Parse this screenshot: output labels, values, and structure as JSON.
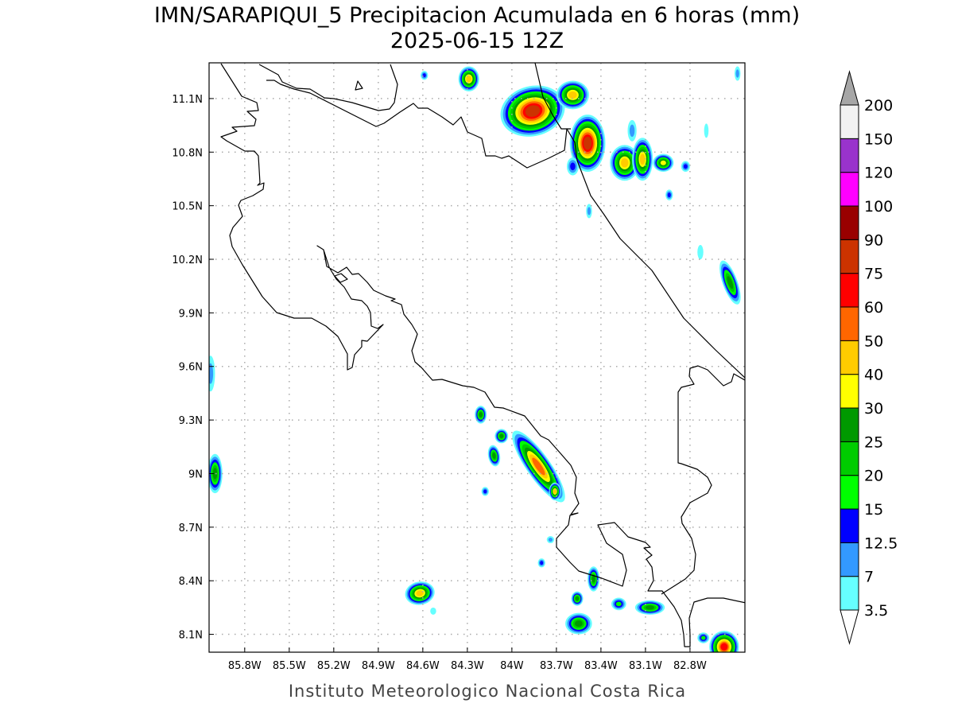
{
  "chart_data": {
    "type": "heatmap",
    "title": "IMN/SARAPIQUI_5 Precipitacion Acumulada en 6 horas (mm)",
    "subtitle": "2025-06-15 12Z",
    "footer": "Instituto Meteorologico Nacional Costa Rica",
    "xlim_lon_west": [
      86.04,
      82.43
    ],
    "ylim_lat_north": [
      8.0,
      11.3
    ],
    "grid": true,
    "x_ticks": [
      {
        "v": 85.8,
        "label": "85.8W"
      },
      {
        "v": 85.5,
        "label": "85.5W"
      },
      {
        "v": 85.2,
        "label": "85.2W"
      },
      {
        "v": 84.9,
        "label": "84.9W"
      },
      {
        "v": 84.6,
        "label": "84.6W"
      },
      {
        "v": 84.3,
        "label": "84.3W"
      },
      {
        "v": 84.0,
        "label": "84W"
      },
      {
        "v": 83.7,
        "label": "83.7W"
      },
      {
        "v": 83.4,
        "label": "83.4W"
      },
      {
        "v": 83.1,
        "label": "83.1W"
      },
      {
        "v": 82.8,
        "label": "82.8W"
      }
    ],
    "y_ticks": [
      {
        "v": 11.1,
        "label": "11.1N"
      },
      {
        "v": 10.8,
        "label": "10.8N"
      },
      {
        "v": 10.5,
        "label": "10.5N"
      },
      {
        "v": 10.2,
        "label": "10.2N"
      },
      {
        "v": 9.9,
        "label": "9.9N"
      },
      {
        "v": 9.6,
        "label": "9.6N"
      },
      {
        "v": 9.3,
        "label": "9.3N"
      },
      {
        "v": 9.0,
        "label": "9N"
      },
      {
        "v": 8.7,
        "label": "8.7N"
      },
      {
        "v": 8.4,
        "label": "8.4N"
      },
      {
        "v": 8.1,
        "label": "8.1N"
      }
    ],
    "colorbar": {
      "levels": [
        "3.5",
        "7",
        "12.5",
        "15",
        "20",
        "25",
        "30",
        "40",
        "50",
        "60",
        "75",
        "90",
        "100",
        "120",
        "150",
        "200"
      ],
      "level_values": [
        3.5,
        7,
        12.5,
        15,
        20,
        25,
        30,
        40,
        50,
        60,
        75,
        90,
        100,
        120,
        150,
        200
      ],
      "colors": [
        "#66ffff",
        "#3399ff",
        "#0000ff",
        "#00ff00",
        "#00cc00",
        "#009900",
        "#ffff00",
        "#ffcc00",
        "#ff6600",
        "#ff0000",
        "#cc3300",
        "#990000",
        "#ff00ff",
        "#9933cc",
        "#f2f2f2"
      ],
      "over_color": "#a6a6a6",
      "under_color": "#ffffff"
    },
    "cells": [
      {
        "lon": 83.86,
        "lat": 11.03,
        "rx": 0.22,
        "ry": 0.14,
        "angle": -15,
        "peak": 75
      },
      {
        "lon": 83.59,
        "lat": 11.12,
        "rx": 0.11,
        "ry": 0.08,
        "angle": 0,
        "peak": 40
      },
      {
        "lon": 83.49,
        "lat": 10.85,
        "rx": 0.12,
        "ry": 0.16,
        "angle": 0,
        "peak": 75
      },
      {
        "lon": 83.59,
        "lat": 10.72,
        "rx": 0.04,
        "ry": 0.05,
        "angle": 0,
        "peak": 12.5
      },
      {
        "lon": 84.29,
        "lat": 11.21,
        "rx": 0.07,
        "ry": 0.07,
        "angle": 0,
        "peak": 40
      },
      {
        "lon": 84.59,
        "lat": 11.23,
        "rx": 0.025,
        "ry": 0.025,
        "angle": 0,
        "peak": 12.5
      },
      {
        "lon": 83.24,
        "lat": 10.74,
        "rx": 0.1,
        "ry": 0.1,
        "angle": 0,
        "peak": 40
      },
      {
        "lon": 83.12,
        "lat": 10.76,
        "rx": 0.07,
        "ry": 0.12,
        "angle": 0,
        "peak": 40
      },
      {
        "lon": 82.98,
        "lat": 10.74,
        "rx": 0.07,
        "ry": 0.05,
        "angle": 0,
        "peak": 30
      },
      {
        "lon": 83.19,
        "lat": 10.92,
        "rx": 0.03,
        "ry": 0.06,
        "angle": 0,
        "peak": 7
      },
      {
        "lon": 82.83,
        "lat": 10.72,
        "rx": 0.03,
        "ry": 0.03,
        "angle": 0,
        "peak": 12.5
      },
      {
        "lon": 82.94,
        "lat": 10.56,
        "rx": 0.025,
        "ry": 0.03,
        "angle": 0,
        "peak": 12.5
      },
      {
        "lon": 83.48,
        "lat": 10.47,
        "rx": 0.02,
        "ry": 0.04,
        "angle": 0,
        "peak": 7
      },
      {
        "lon": 82.53,
        "lat": 10.07,
        "rx": 0.05,
        "ry": 0.13,
        "angle": -20,
        "peak": 25
      },
      {
        "lon": 82.48,
        "lat": 11.24,
        "rx": 0.02,
        "ry": 0.04,
        "angle": 0,
        "peak": 7
      },
      {
        "lon": 82.69,
        "lat": 10.92,
        "rx": 0.015,
        "ry": 0.04,
        "angle": 0,
        "peak": 3.5
      },
      {
        "lon": 82.73,
        "lat": 10.24,
        "rx": 0.02,
        "ry": 0.04,
        "angle": 0,
        "peak": 3.5
      },
      {
        "lon": 84.21,
        "lat": 9.33,
        "rx": 0.04,
        "ry": 0.05,
        "angle": 0,
        "peak": 25
      },
      {
        "lon": 84.07,
        "lat": 9.21,
        "rx": 0.045,
        "ry": 0.04,
        "angle": 0,
        "peak": 25
      },
      {
        "lon": 84.12,
        "lat": 9.1,
        "rx": 0.04,
        "ry": 0.06,
        "angle": -10,
        "peak": 25
      },
      {
        "lon": 83.82,
        "lat": 9.04,
        "rx": 0.08,
        "ry": 0.24,
        "angle": -35,
        "peak": 50
      },
      {
        "lon": 83.71,
        "lat": 8.9,
        "rx": 0.04,
        "ry": 0.05,
        "angle": 0,
        "peak": 40
      },
      {
        "lon": 84.18,
        "lat": 8.9,
        "rx": 0.025,
        "ry": 0.025,
        "angle": 0,
        "peak": 12.5
      },
      {
        "lon": 83.74,
        "lat": 8.63,
        "rx": 0.025,
        "ry": 0.02,
        "angle": 0,
        "peak": 7
      },
      {
        "lon": 83.8,
        "lat": 8.5,
        "rx": 0.025,
        "ry": 0.025,
        "angle": 0,
        "peak": 12.5
      },
      {
        "lon": 83.45,
        "lat": 8.41,
        "rx": 0.04,
        "ry": 0.07,
        "angle": 0,
        "peak": 25
      },
      {
        "lon": 83.56,
        "lat": 8.3,
        "rx": 0.04,
        "ry": 0.04,
        "angle": 0,
        "peak": 25
      },
      {
        "lon": 83.28,
        "lat": 8.27,
        "rx": 0.05,
        "ry": 0.035,
        "angle": 0,
        "peak": 15
      },
      {
        "lon": 83.07,
        "lat": 8.25,
        "rx": 0.1,
        "ry": 0.04,
        "angle": 0,
        "peak": 25
      },
      {
        "lon": 83.55,
        "lat": 8.16,
        "rx": 0.09,
        "ry": 0.06,
        "angle": 0,
        "peak": 25
      },
      {
        "lon": 82.57,
        "lat": 8.03,
        "rx": 0.1,
        "ry": 0.09,
        "angle": 0,
        "peak": 60
      },
      {
        "lon": 82.71,
        "lat": 8.08,
        "rx": 0.04,
        "ry": 0.03,
        "angle": 0,
        "peak": 15
      },
      {
        "lon": 84.62,
        "lat": 8.33,
        "rx": 0.1,
        "ry": 0.065,
        "angle": -10,
        "peak": 40
      },
      {
        "lon": 84.53,
        "lat": 8.23,
        "rx": 0.02,
        "ry": 0.02,
        "angle": 0,
        "peak": 3.5
      },
      {
        "lon": 86.0,
        "lat": 9.0,
        "rx": 0.05,
        "ry": 0.11,
        "angle": 0,
        "peak": 25
      },
      {
        "lon": 86.03,
        "lat": 9.56,
        "rx": 0.03,
        "ry": 0.1,
        "angle": 0,
        "peak": 7
      }
    ]
  }
}
